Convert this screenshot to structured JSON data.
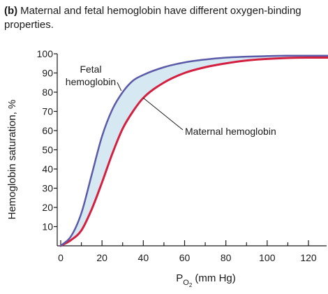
{
  "header": {
    "part_label": "(b)",
    "title": "Maternal and fetal hemoglobin have different oxygen-binding properties."
  },
  "chart_data": {
    "type": "line",
    "title": "Maternal and fetal hemoglobin have different oxygen-binding properties.",
    "xlabel_main": "P",
    "xlabel_sub1": "O",
    "xlabel_sub2": "2",
    "xlabel_rest": " (mm Hg)",
    "ylabel": "Hemoglobin saturation, %",
    "xlim": [
      0,
      130
    ],
    "ylim": [
      0,
      100
    ],
    "x_ticks": [
      0,
      20,
      40,
      60,
      80,
      100,
      120
    ],
    "y_ticks": [
      10,
      20,
      30,
      40,
      50,
      60,
      70,
      80,
      90,
      100
    ],
    "grid": false,
    "fill_between_series": true,
    "fill_color": "#d6e8f2",
    "series": [
      {
        "name": "Fetal hemoglobin",
        "color": "#5a5aa8",
        "x": [
          0,
          5,
          10,
          15,
          20,
          25,
          30,
          35,
          40,
          50,
          60,
          70,
          80,
          90,
          100,
          110,
          120,
          130
        ],
        "y": [
          0,
          5,
          17,
          37,
          57,
          71,
          80,
          86,
          89,
          93,
          95.5,
          97,
          98,
          98.5,
          98.8,
          99,
          99,
          99
        ]
      },
      {
        "name": "Maternal hemoglobin",
        "color": "#d42040",
        "x": [
          0,
          5,
          10,
          15,
          20,
          25,
          30,
          35,
          40,
          50,
          60,
          70,
          80,
          90,
          100,
          110,
          120,
          130
        ],
        "y": [
          0,
          3,
          8,
          19,
          33,
          48,
          61,
          70,
          77,
          85,
          90,
          93,
          95,
          96.5,
          97.3,
          97.8,
          98,
          98
        ]
      }
    ],
    "annotations": [
      {
        "text_lines": [
          "Fetal",
          "hemoglobin"
        ],
        "target_series": "Fetal hemoglobin",
        "target_x": 30
      },
      {
        "text_lines": [
          "Maternal hemoglobin"
        ],
        "target_series": "Maternal hemoglobin",
        "target_x": 40
      }
    ]
  }
}
